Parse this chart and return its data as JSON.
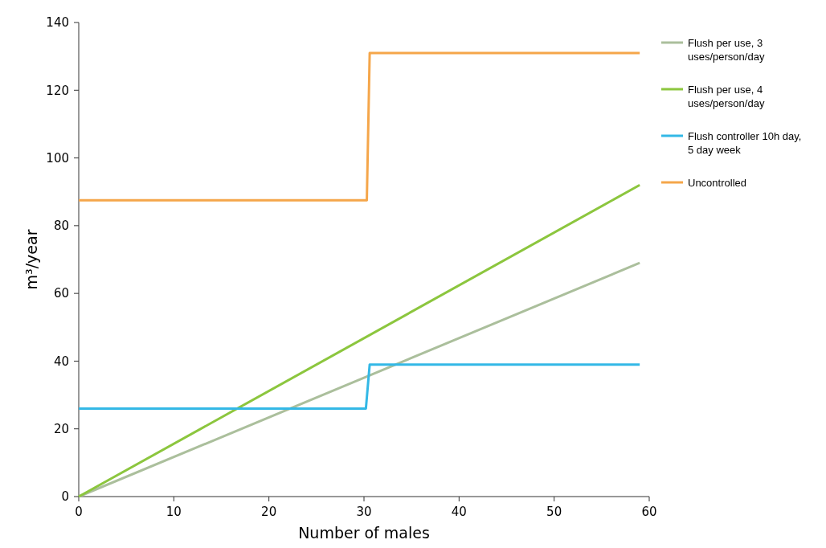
{
  "chart_data": {
    "type": "line",
    "xlabel": "Number of males",
    "ylabel": "m³/year",
    "xlim": [
      0,
      60
    ],
    "xticks": [
      0,
      10,
      20,
      30,
      40,
      50,
      60
    ],
    "ylim": [
      0,
      140
    ],
    "yticks": [
      0,
      20,
      40,
      60,
      80,
      100,
      120,
      140
    ],
    "grid": false,
    "legend": "right",
    "marker": "none",
    "line_style": "solid",
    "series": [
      {
        "name": "Flush per use, 3 uses/person/day",
        "color": "#abbf9c",
        "x": [
          0,
          59
        ],
        "values": [
          0,
          69
        ]
      },
      {
        "name": "Flush per use, 4 uses/person/day",
        "color": "#8cc63e",
        "x": [
          0,
          59
        ],
        "values": [
          0,
          92
        ]
      },
      {
        "name": "Flush controller 10h day, 5 day week",
        "color": "#33b8e6",
        "x": [
          0,
          30.2,
          30.6,
          59
        ],
        "values": [
          26,
          26,
          39,
          39
        ]
      },
      {
        "name": "Uncontrolled",
        "color": "#f5a64a",
        "x": [
          0,
          30.3,
          30.6,
          59
        ],
        "values": [
          87.5,
          87.5,
          131,
          131
        ]
      }
    ]
  }
}
